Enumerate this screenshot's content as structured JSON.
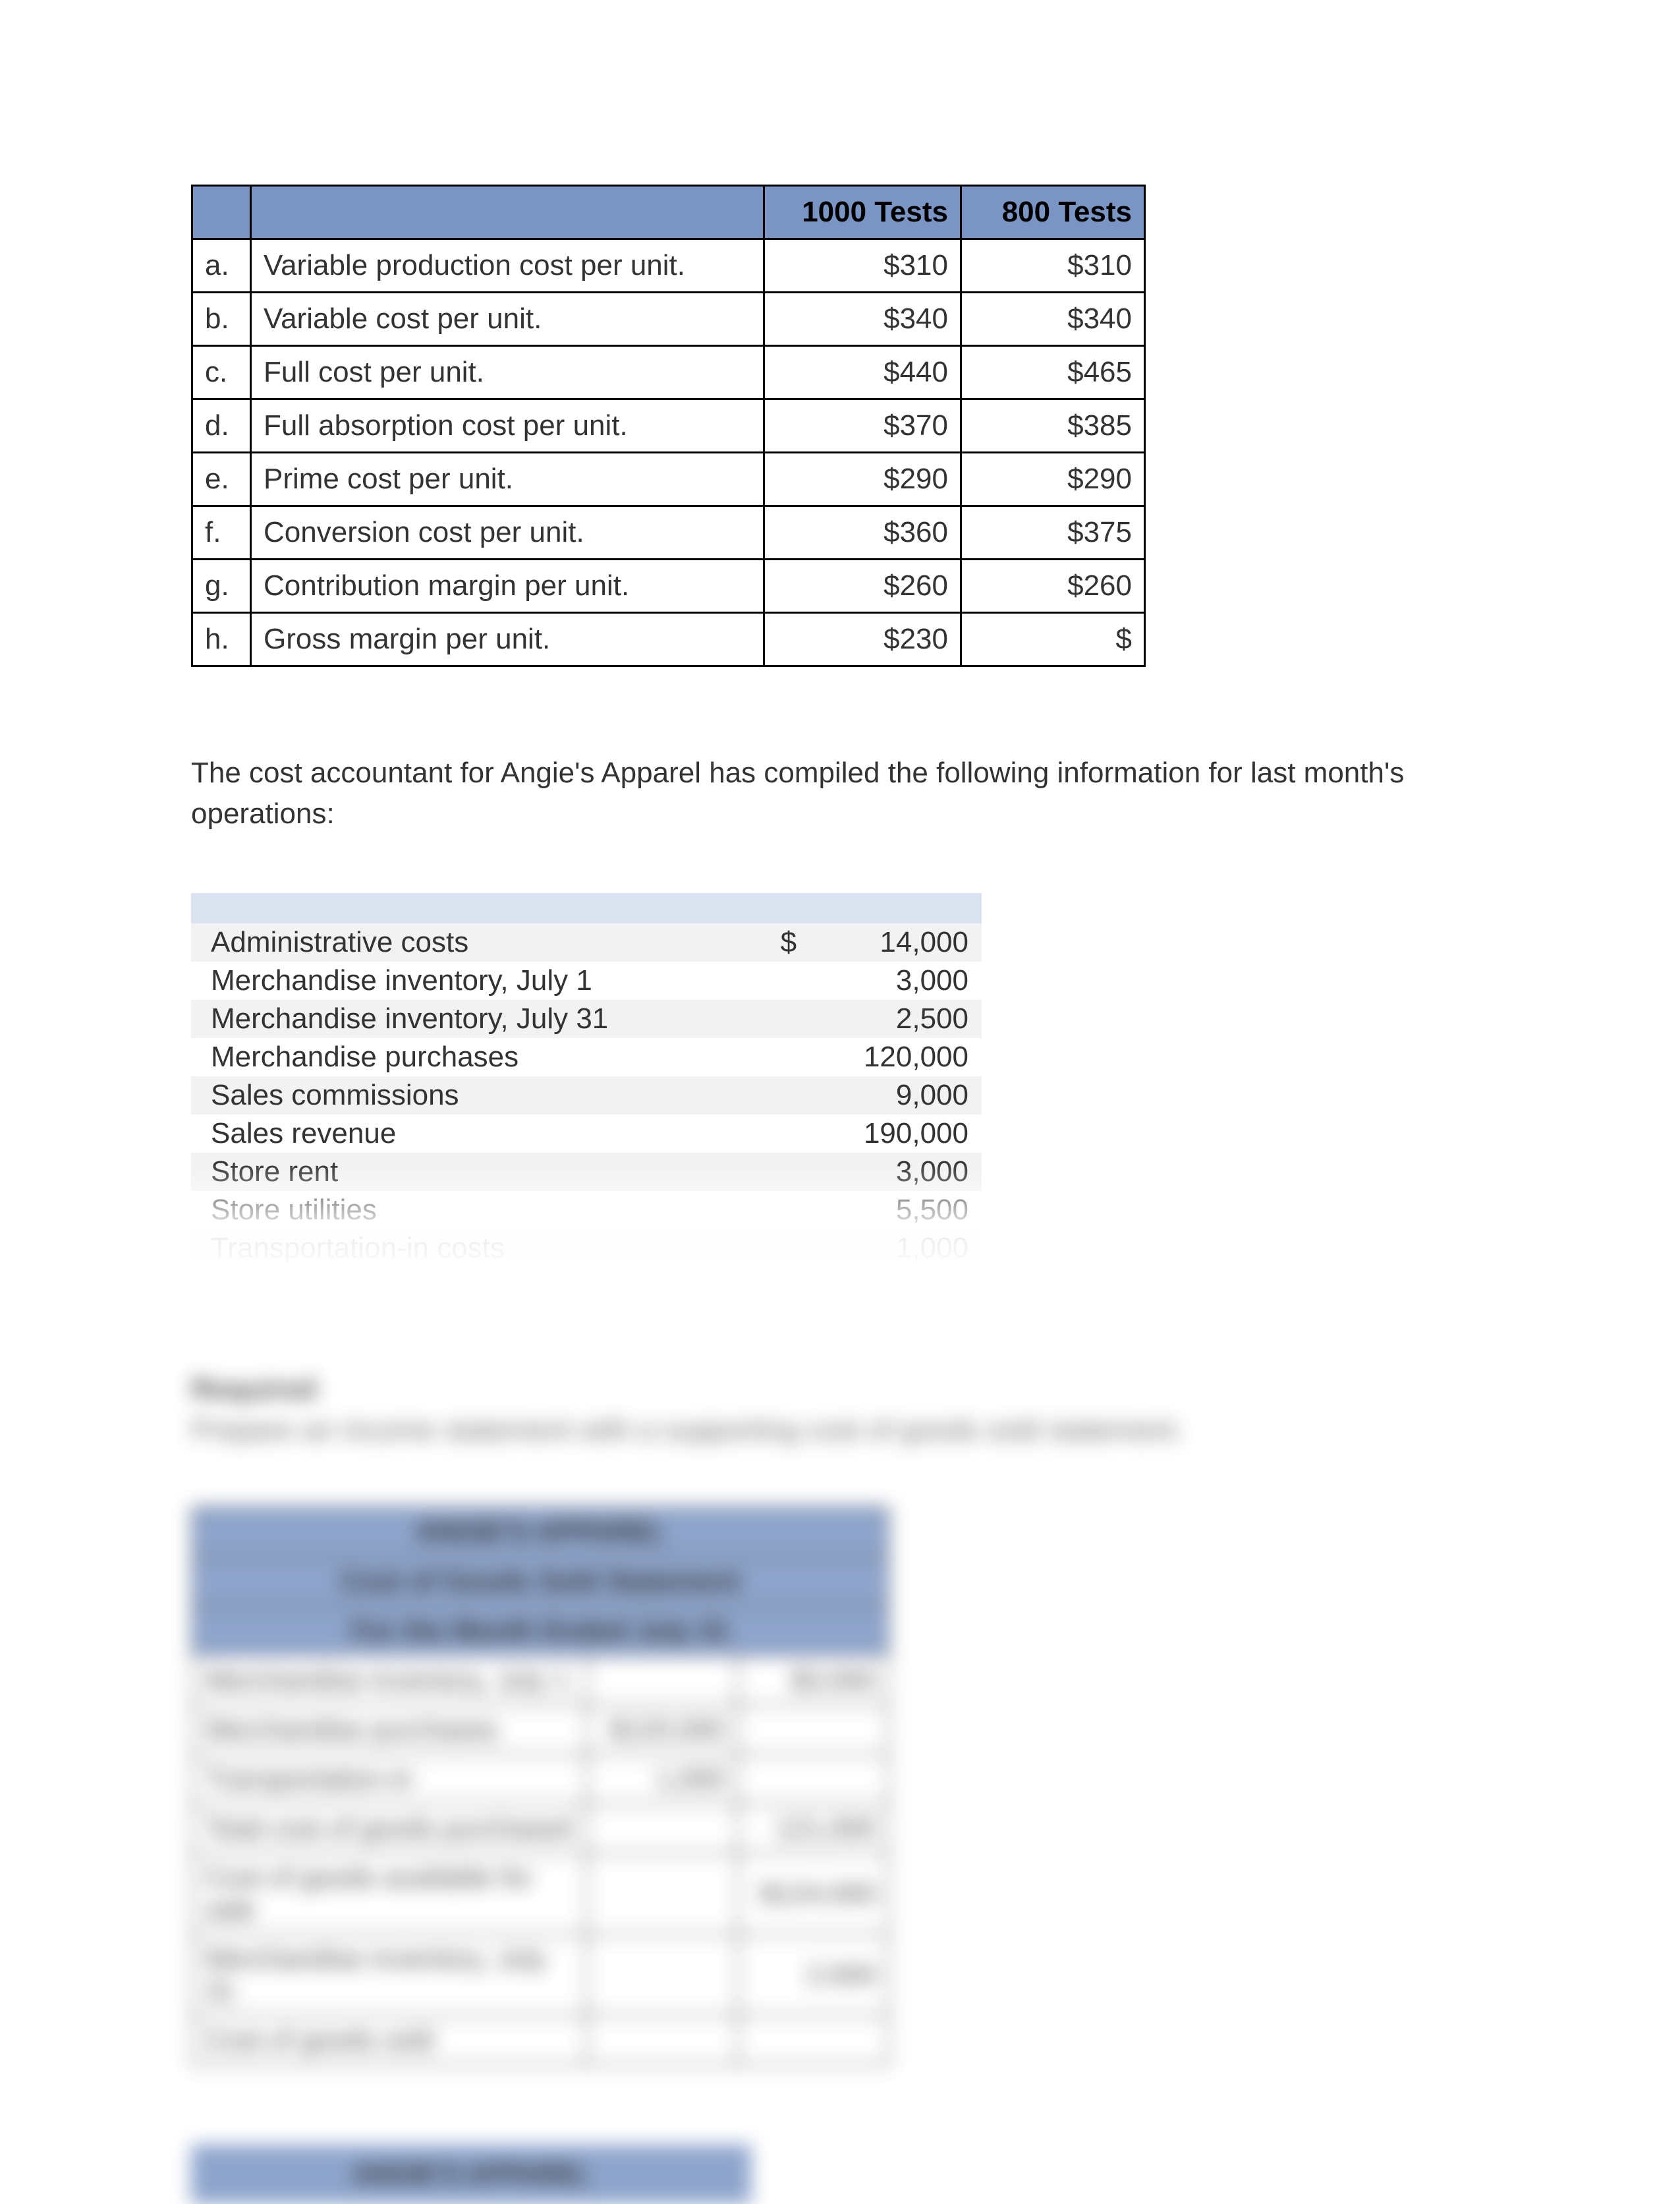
{
  "cost_table": {
    "header_col1": "1000 Tests",
    "header_col2": "800 Tests",
    "rows": [
      {
        "letter": "a.",
        "desc": "Variable production cost per unit.",
        "val1000": "$310",
        "val800": "$310"
      },
      {
        "letter": "b.",
        "desc": "Variable cost per unit.",
        "val1000": "$340",
        "val800": "$340"
      },
      {
        "letter": "c.",
        "desc": "Full cost per unit.",
        "val1000": "$440",
        "val800": "$465"
      },
      {
        "letter": "d.",
        "desc": "Full absorption cost per unit.",
        "val1000": "$370",
        "val800": "$385"
      },
      {
        "letter": "e.",
        "desc": "Prime cost per unit.",
        "val1000": "$290",
        "val800": "$290"
      },
      {
        "letter": "f.",
        "desc": "Conversion cost per unit.",
        "val1000": "$360",
        "val800": "$375"
      },
      {
        "letter": "g.",
        "desc": "Contribution margin per unit.",
        "val1000": "$260",
        "val800": "$260"
      },
      {
        "letter": "h.",
        "desc": "Gross margin per unit.",
        "val1000": "$230",
        "val800": "$"
      }
    ]
  },
  "paragraph": "The cost accountant for Angie's Apparel has compiled the following information for last month's operations:",
  "ops_table": {
    "currency_symbol": "$",
    "rows": [
      {
        "label": "Administrative costs",
        "sym": "$",
        "value": "14,000",
        "stripe": "odd"
      },
      {
        "label": "Merchandise inventory, July 1",
        "sym": "",
        "value": "3,000",
        "stripe": "even"
      },
      {
        "label": "Merchandise inventory, July 31",
        "sym": "",
        "value": "2,500",
        "stripe": "odd"
      },
      {
        "label": "Merchandise purchases",
        "sym": "",
        "value": "120,000",
        "stripe": "even"
      },
      {
        "label": "Sales commissions",
        "sym": "",
        "value": "9,000",
        "stripe": "odd"
      },
      {
        "label": "Sales revenue",
        "sym": "",
        "value": "190,000",
        "stripe": "even"
      },
      {
        "label": "Store rent",
        "sym": "",
        "value": "3,000",
        "stripe": "odd"
      },
      {
        "label": "Store utilities",
        "sym": "",
        "value": "5,500",
        "stripe": "even"
      },
      {
        "label": "Transportation-in costs",
        "sym": "",
        "value": "1,000",
        "stripe": "odd"
      }
    ]
  },
  "blurred": {
    "heading": "Required",
    "line": "Prepare an income statement with a supporting cost of goods sold statement.",
    "cogs_title1": "ANGIE'S APPAREL",
    "cogs_title2": "Cost of Goods Sold Statement",
    "cogs_title3": "For the Month Ended July 31",
    "rows": [
      {
        "desc": "Merchandise inventory, July 1",
        "a": "",
        "b": "$3,000"
      },
      {
        "desc": "Merchandise purchases",
        "a": "$120,000",
        "b": ""
      },
      {
        "desc": "Transportation-in",
        "a": "1,000",
        "b": ""
      },
      {
        "desc": "Total cost of goods purchased",
        "a": "",
        "b": "121,000"
      },
      {
        "desc": "Cost of goods available for sale",
        "a": "",
        "b": "$124,000"
      },
      {
        "desc": "Merchandise inventory, July 31",
        "a": "",
        "b": "2,500"
      },
      {
        "desc": "Cost of goods sold",
        "a": "",
        "b": ""
      }
    ],
    "banner": "ANGIE'S APPAREL"
  },
  "colors": {
    "table_header_bg": "#7a95c3",
    "stripe_odd": "#f2f2f2",
    "stripe_even": "#ffffff",
    "ops_header_bg": "#dbe2ef"
  }
}
